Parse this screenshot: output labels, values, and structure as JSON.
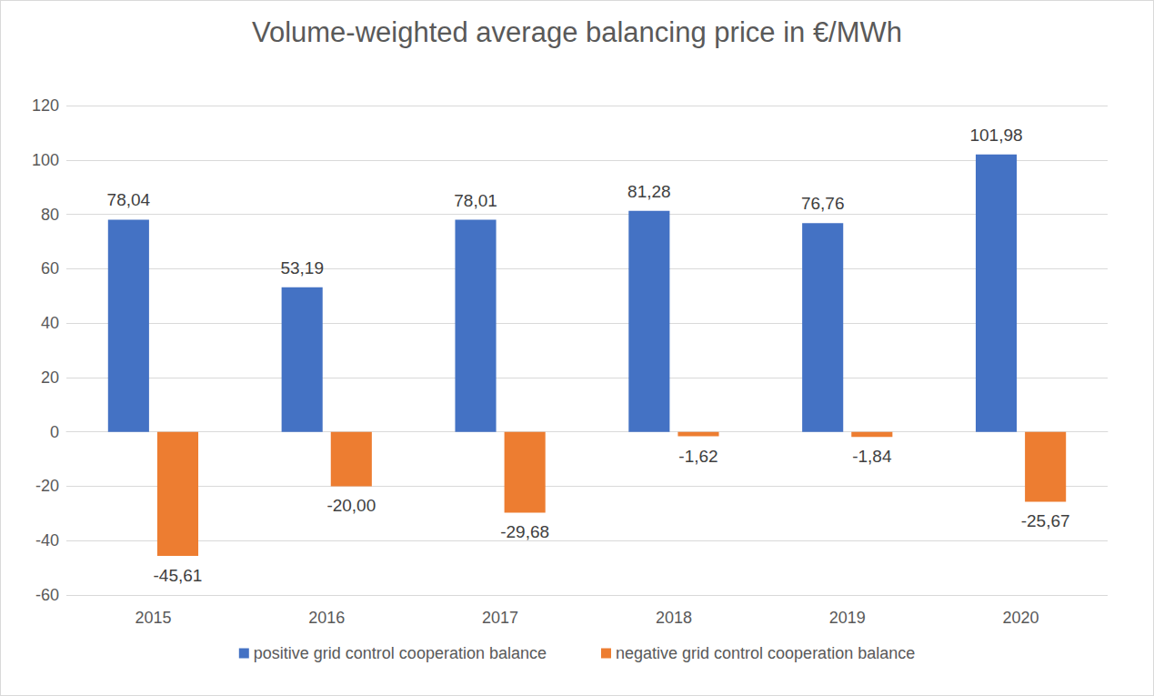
{
  "chart_data": {
    "type": "bar",
    "title": "Volume-weighted average balancing price in €/MWh",
    "categories": [
      "2015",
      "2016",
      "2017",
      "2018",
      "2019",
      "2020"
    ],
    "series": [
      {
        "name": "positive grid control cooperation balance",
        "color": "#4472c4",
        "values": [
          78.04,
          53.19,
          78.01,
          81.28,
          76.76,
          101.98
        ],
        "value_labels": [
          "78,04",
          "53,19",
          "78,01",
          "81,28",
          "76,76",
          "101,98"
        ]
      },
      {
        "name": "negative grid control cooperation balance",
        "color": "#ed7d31",
        "values": [
          -45.61,
          -20.0,
          -29.68,
          -1.62,
          -1.84,
          -25.67
        ],
        "value_labels": [
          "-45,61",
          "-20,00",
          "-29,68",
          "-1,62",
          "-1,84",
          "-25,67"
        ]
      }
    ],
    "ylim": [
      -60,
      120
    ],
    "yticks": [
      -60,
      -40,
      -20,
      0,
      20,
      40,
      60,
      80,
      100,
      120
    ],
    "grid": true,
    "legend": "bottom",
    "data_labels": true
  }
}
